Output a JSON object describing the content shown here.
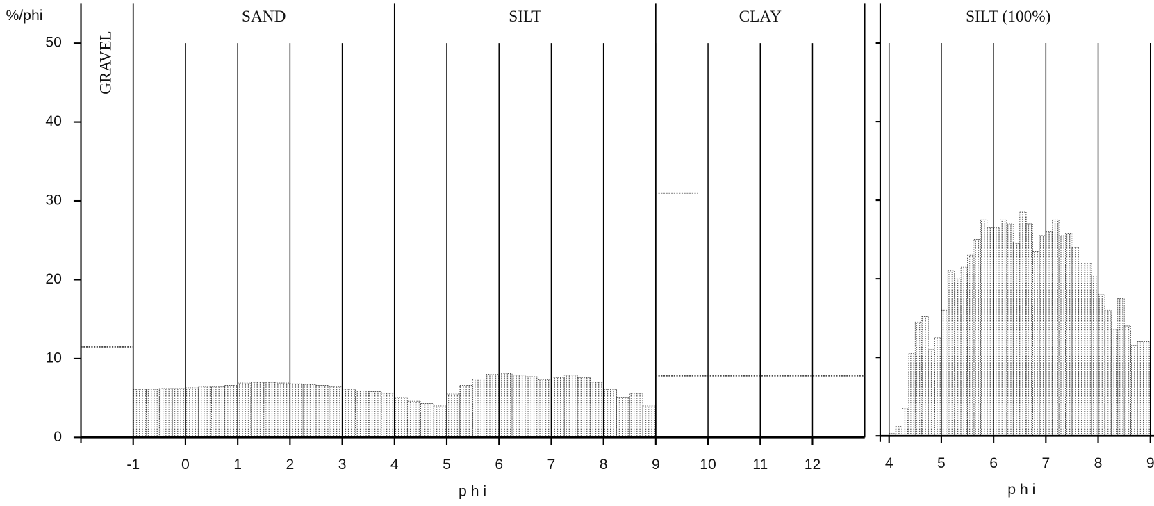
{
  "chart_data": [
    {
      "type": "histogram",
      "y_label": "%/phi",
      "x_label": "p h i",
      "class_labels": [
        "GRAVEL",
        "SAND",
        "SILT",
        "CLAY"
      ],
      "class_bounds": [
        -1,
        4,
        9,
        13
      ],
      "bins": [
        -1,
        -0.75,
        -0.5,
        -0.25,
        0,
        0.25,
        0.5,
        0.75,
        1,
        1.25,
        1.5,
        1.75,
        2,
        2.25,
        2.5,
        2.75,
        3,
        3.25,
        3.5,
        3.75,
        4,
        4.25,
        4.5,
        4.75,
        5,
        5.25,
        5.5,
        5.75,
        6,
        6.25,
        6.5,
        6.75,
        7,
        7.25,
        7.5,
        7.75,
        8,
        8.25,
        8.5,
        8.75,
        9
      ],
      "values": [
        6.1,
        6.1,
        6.2,
        6.2,
        6.3,
        6.4,
        6.4,
        6.6,
        6.9,
        7.0,
        7.0,
        6.9,
        6.8,
        6.7,
        6.6,
        6.4,
        6.1,
        5.9,
        5.8,
        5.6,
        5.1,
        4.6,
        4.3,
        4.0,
        5.5,
        6.6,
        7.4,
        8.0,
        8.1,
        7.9,
        7.7,
        7.3,
        7.6,
        7.9,
        7.6,
        7.0,
        6.1,
        5.1,
        5.6,
        4.0
      ],
      "levels": [
        {
          "x": [
            -2,
            -1
          ],
          "value": 11.5
        },
        {
          "x": [
            9,
            9.8
          ],
          "value": 31
        },
        {
          "x": [
            9,
            13
          ],
          "value": 7.8
        }
      ],
      "xlim": [
        -2,
        13
      ],
      "ylim": [
        0,
        55
      ],
      "xticks": [
        -1,
        0,
        1,
        2,
        3,
        4,
        5,
        6,
        7,
        8,
        9,
        10,
        11,
        12
      ],
      "yticks": [
        0,
        10,
        20,
        30,
        40,
        50
      ],
      "show_ytick_labels": true
    },
    {
      "type": "histogram",
      "title": "SILT (100%)",
      "x_label": "p h i",
      "bins": [
        4,
        4.125,
        4.25,
        4.375,
        4.5,
        4.625,
        4.75,
        4.875,
        5,
        5.125,
        5.25,
        5.375,
        5.5,
        5.625,
        5.75,
        5.875,
        6,
        6.125,
        6.25,
        6.375,
        6.5,
        6.625,
        6.75,
        6.875,
        7,
        7.125,
        7.25,
        7.375,
        7.5,
        7.625,
        7.75,
        7.875,
        8,
        8.125,
        8.25,
        8.375,
        8.5,
        8.625,
        8.75,
        8.875,
        9
      ],
      "values": [
        0.3,
        1.2,
        3.5,
        10.5,
        14.5,
        15.2,
        11,
        12.5,
        16,
        21,
        20,
        21.5,
        23,
        25,
        27.5,
        26.5,
        26.5,
        27.5,
        27,
        24.5,
        28.5,
        27,
        23.5,
        25.5,
        26,
        27.5,
        25.5,
        25.8,
        24,
        22,
        22,
        20.5,
        18,
        16,
        13.5,
        17.5,
        14,
        11.5,
        12,
        12
      ],
      "xlim": [
        3.83,
        9.07
      ],
      "ylim": [
        0,
        55
      ],
      "xticks": [
        4,
        5,
        6,
        7,
        8,
        9
      ],
      "yticks": [
        0,
        10,
        20,
        30,
        40,
        50
      ],
      "show_ytick_labels": false
    }
  ]
}
